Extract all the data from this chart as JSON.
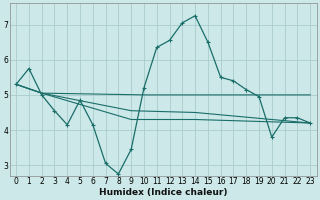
{
  "xlabel": "Humidex (Indice chaleur)",
  "bg_color": "#cce8e8",
  "grid_color": "#aacccc",
  "line_color": "#1a6e6a",
  "xlim": [
    -0.5,
    23.5
  ],
  "ylim": [
    2.7,
    7.6
  ],
  "yticks": [
    3,
    4,
    5,
    6,
    7
  ],
  "xticks": [
    0,
    1,
    2,
    3,
    4,
    5,
    6,
    7,
    8,
    9,
    10,
    11,
    12,
    13,
    14,
    15,
    16,
    17,
    18,
    19,
    20,
    21,
    22,
    23
  ],
  "series1_x": [
    0,
    1,
    2,
    3,
    4,
    5,
    6,
    7,
    8,
    9,
    10,
    11,
    12,
    13,
    14,
    15,
    16,
    17,
    18,
    19,
    20,
    21,
    22,
    23
  ],
  "series1_y": [
    5.3,
    5.75,
    5.0,
    4.55,
    4.15,
    4.85,
    4.15,
    3.05,
    2.75,
    3.45,
    5.2,
    6.35,
    6.55,
    7.05,
    7.25,
    6.5,
    5.5,
    5.4,
    5.15,
    4.95,
    3.8,
    4.35,
    4.35,
    4.2
  ],
  "series2_x": [
    0,
    2,
    10,
    23
  ],
  "series2_y": [
    5.3,
    5.05,
    5.0,
    5.0
  ],
  "series3_x": [
    0,
    2,
    9,
    14,
    23
  ],
  "series3_y": [
    5.3,
    5.05,
    4.3,
    4.3,
    4.2
  ],
  "series4_x": [
    0,
    2,
    9,
    14,
    20,
    23
  ],
  "series4_y": [
    5.3,
    5.05,
    4.55,
    4.5,
    4.3,
    4.2
  ]
}
